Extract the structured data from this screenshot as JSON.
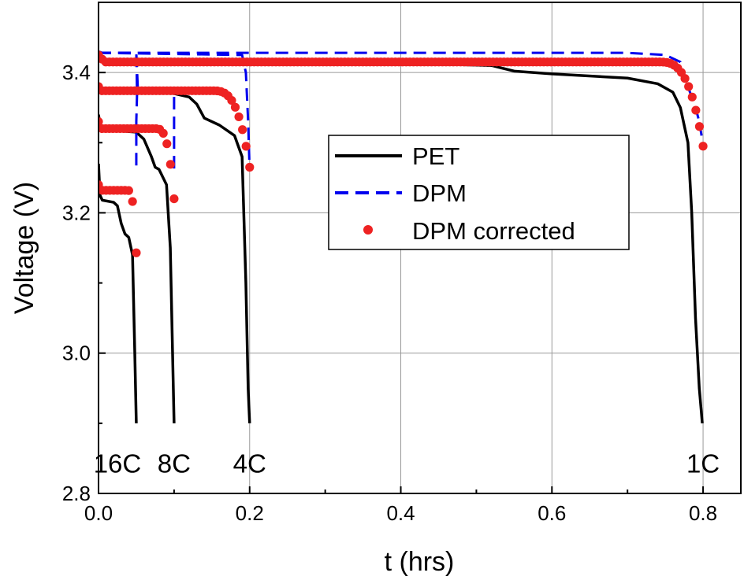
{
  "chart_data": {
    "type": "line",
    "title": "",
    "xlabel": "t (hrs)",
    "ylabel": "Voltage (V)",
    "xlim": [
      0.0,
      0.85
    ],
    "ylim": [
      2.8,
      3.5
    ],
    "x_ticks": [
      0.0,
      0.2,
      0.4,
      0.6,
      0.8
    ],
    "x_tick_labels": [
      "0.0",
      "0.2",
      "0.4",
      "0.6",
      "0.8"
    ],
    "y_ticks": [
      2.8,
      3.0,
      3.2,
      3.4
    ],
    "y_tick_labels": [
      "2.8",
      "3.0",
      "3.2",
      "3.4"
    ],
    "grid": true,
    "legend_position": "center-right",
    "legend": [
      {
        "name": "PET",
        "style": "solid",
        "color": "#000000"
      },
      {
        "name": "DPM",
        "style": "dashed",
        "color": "#0000ee"
      },
      {
        "name": "DPM corrected",
        "style": "markers",
        "color": "#ee2222"
      }
    ],
    "annotations": [
      {
        "text": "16C",
        "x": 0.025,
        "y": 2.83
      },
      {
        "text": "8C",
        "x": 0.1,
        "y": 2.83
      },
      {
        "text": "4C",
        "x": 0.2,
        "y": 2.83
      },
      {
        "text": "1C",
        "x": 0.8,
        "y": 2.83
      }
    ],
    "series": [
      {
        "name": "PET",
        "rate": "1C",
        "x": [
          0,
          0.005,
          0.02,
          0.1,
          0.3,
          0.45,
          0.52,
          0.55,
          0.6,
          0.7,
          0.74,
          0.76,
          0.77,
          0.78,
          0.785,
          0.79,
          0.795,
          0.799
        ],
        "y": [
          3.42,
          3.415,
          3.413,
          3.412,
          3.413,
          3.412,
          3.41,
          3.402,
          3.398,
          3.392,
          3.384,
          3.372,
          3.35,
          3.3,
          3.2,
          3.05,
          2.95,
          2.9
        ]
      },
      {
        "name": "PET",
        "rate": "4C",
        "x": [
          0,
          0.004,
          0.02,
          0.1,
          0.12,
          0.13,
          0.14,
          0.16,
          0.18,
          0.19,
          0.195,
          0.198,
          0.2
        ],
        "y": [
          3.38,
          3.372,
          3.372,
          3.37,
          3.365,
          3.355,
          3.335,
          3.325,
          3.31,
          3.28,
          3.1,
          2.95,
          2.9
        ]
      },
      {
        "name": "PET",
        "rate": "8C",
        "x": [
          0,
          0.003,
          0.01,
          0.05,
          0.06,
          0.07,
          0.075,
          0.08,
          0.09,
          0.095,
          0.098,
          0.1
        ],
        "y": [
          3.34,
          3.318,
          3.318,
          3.315,
          3.305,
          3.28,
          3.265,
          3.262,
          3.24,
          3.15,
          3.0,
          2.9
        ]
      },
      {
        "name": "PET",
        "rate": "16C",
        "x": [
          0,
          0.002,
          0.005,
          0.02,
          0.025,
          0.03,
          0.035,
          0.04,
          0.045,
          0.048,
          0.05
        ],
        "y": [
          3.27,
          3.225,
          3.218,
          3.215,
          3.21,
          3.185,
          3.17,
          3.165,
          3.14,
          3.0,
          2.9
        ]
      },
      {
        "name": "DPM",
        "rate": "1C",
        "x": [
          0,
          0.005,
          0.5,
          0.7,
          0.75,
          0.77,
          0.78,
          0.79,
          0.795,
          0.798
        ],
        "y": [
          3.43,
          3.428,
          3.428,
          3.428,
          3.425,
          3.415,
          3.38,
          3.35,
          3.33,
          3.31
        ]
      },
      {
        "name": "DPM",
        "rate": "4C",
        "x": [
          0,
          0.004,
          0.19,
          0.195,
          0.198,
          0.2
        ],
        "y": [
          3.428,
          3.428,
          3.425,
          3.4,
          3.33,
          3.26
        ]
      },
      {
        "name": "DPM",
        "rate": "8C",
        "x": [
          0,
          0.003,
          0.05,
          0.052,
          0.1,
          0.1
        ],
        "y": [
          3.428,
          3.428,
          3.428,
          3.378,
          3.378,
          3.26
        ]
      },
      {
        "name": "DPM",
        "rate": "16C",
        "x": [
          0,
          0.003,
          0.05,
          0.051,
          0.05,
          0.05
        ],
        "y": [
          3.428,
          3.428,
          3.428,
          3.37,
          3.33,
          3.26
        ]
      },
      {
        "name": "DPM corrected",
        "rate": "1C",
        "x_start": 0.0,
        "x_end": 0.8,
        "y_start": 3.425,
        "y_mid": 3.415,
        "knee": 0.74,
        "y_end": 3.295
      },
      {
        "name": "DPM corrected",
        "rate": "4C",
        "x_start": 0.0,
        "x_end": 0.2,
        "y_start": 3.38,
        "y_mid": 3.374,
        "knee": 0.15,
        "y_end": 3.265
      },
      {
        "name": "DPM corrected",
        "rate": "8C",
        "x_start": 0.0,
        "x_end": 0.1,
        "y_start": 3.33,
        "y_mid": 3.32,
        "knee": 0.075,
        "y_end": 3.22
      },
      {
        "name": "DPM corrected",
        "rate": "16C",
        "x_start": 0.0,
        "x_end": 0.05,
        "y_start": 3.24,
        "y_mid": 3.232,
        "knee": 0.038,
        "y_end": 3.143
      }
    ]
  }
}
